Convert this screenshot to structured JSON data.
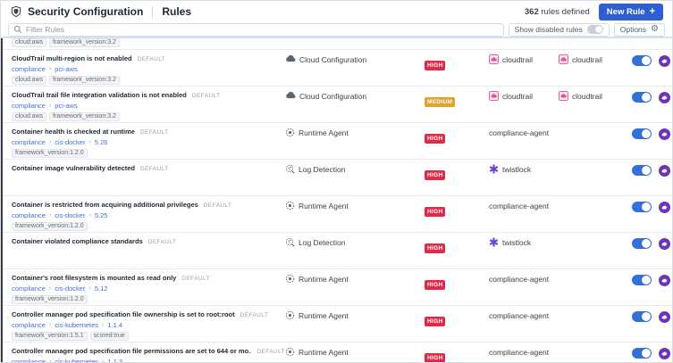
{
  "header": {
    "app_title": "Security Configuration",
    "page_title": "Rules",
    "rules_count": "362",
    "rules_count_label": " rules defined",
    "new_rule": {
      "label": "New Rule",
      "icon": "plus-icon"
    }
  },
  "filter_bar": {
    "search_placeholder": "Filter Rules",
    "search_value": "",
    "show_disabled_label": "Show disabled rules",
    "show_disabled_enabled": false,
    "options_label": "Options",
    "options_icon": "gear-icon"
  },
  "colors": {
    "accent_blue": "#2d5fd3",
    "toggle_on": "#3370d8",
    "link_blue": "#3e6fd9",
    "severity": {
      "HIGH": "#de2b47",
      "MEDIUM": "#dfa32e"
    },
    "cloudtrail_pink": "#ec4d92",
    "twistlock_purple": "#6b46c8",
    "avatar_purple": "#6c35b5"
  },
  "partial_row": {
    "tags": [
      "cloud:aws",
      "framework_version:3.2"
    ]
  },
  "rows": [
    {
      "title": "CloudTrail multi-region is not enabled",
      "badge": "DEFAULT",
      "breadcrumb": [
        "compliance",
        "pci-aws"
      ],
      "tags": [
        "cloud:aws",
        "framework_version:3.2"
      ],
      "type": {
        "icon": "cloud-icon",
        "label": "Cloud Configuration"
      },
      "severity": "HIGH",
      "sources": [
        {
          "icon": "cloudtrail-icon",
          "label": "cloudtrail"
        },
        {
          "icon": "cloudtrail-icon",
          "label": "cloudtrail"
        }
      ],
      "enabled": true
    },
    {
      "title": "CloudTrail trail file integration validation is not enabled",
      "badge": "DEFAULT",
      "breadcrumb": [
        "compliance",
        "pci-aws"
      ],
      "tags": [
        "cloud:aws",
        "framework_version:3.2"
      ],
      "type": {
        "icon": "cloud-icon",
        "label": "Cloud Configuration"
      },
      "severity": "MEDIUM",
      "sources": [
        {
          "icon": "cloudtrail-icon",
          "label": "cloudtrail"
        },
        {
          "icon": "cloudtrail-icon",
          "label": "cloudtrail"
        }
      ],
      "enabled": true
    },
    {
      "title": "Container health is checked at runtime",
      "badge": "DEFAULT",
      "breadcrumb": [
        "compliance",
        "cis-docker",
        "5.26"
      ],
      "tags": [
        "framework_version:1.2.0"
      ],
      "type": {
        "icon": "runtime-agent-icon",
        "label": "Runtime Agent"
      },
      "severity": "HIGH",
      "sources": [
        {
          "icon": null,
          "label": "compliance-agent"
        }
      ],
      "enabled": true
    },
    {
      "title": "Container image vulnerability detected",
      "badge": "DEFAULT",
      "breadcrumb": [],
      "tags": [],
      "type": {
        "icon": "log-detection-icon",
        "label": "Log Detection"
      },
      "severity": "HIGH",
      "sources": [
        {
          "icon": "twistlock-icon",
          "label": "twistlock"
        }
      ],
      "enabled": true
    },
    {
      "title": "Container is restricted from acquiring additional privileges",
      "badge": "DEFAULT",
      "breadcrumb": [
        "compliance",
        "cis-docker",
        "5.25"
      ],
      "tags": [
        "framework_version:1.2.0"
      ],
      "type": {
        "icon": "runtime-agent-icon",
        "label": "Runtime Agent"
      },
      "severity": "HIGH",
      "sources": [
        {
          "icon": null,
          "label": "compliance-agent"
        }
      ],
      "enabled": true
    },
    {
      "title": "Container violated compliance standards",
      "badge": "DEFAULT",
      "breadcrumb": [],
      "tags": [],
      "type": {
        "icon": "log-detection-icon",
        "label": "Log Detection"
      },
      "severity": "HIGH",
      "sources": [
        {
          "icon": "twistlock-icon",
          "label": "twistlock"
        }
      ],
      "enabled": true
    },
    {
      "title": "Container's root filesystem is mounted as read only",
      "badge": "DEFAULT",
      "breadcrumb": [
        "compliance",
        "cis-docker",
        "5.12"
      ],
      "tags": [
        "framework_version:1.2.0"
      ],
      "type": {
        "icon": "runtime-agent-icon",
        "label": "Runtime Agent"
      },
      "severity": "HIGH",
      "sources": [
        {
          "icon": null,
          "label": "compliance-agent"
        }
      ],
      "enabled": true
    },
    {
      "title": "Controller manager pod specification file ownership is set to root:root",
      "badge": "DEFAULT",
      "breadcrumb": [
        "compliance",
        "cis-kubernetes",
        "1.1.4"
      ],
      "tags": [
        "framework_version:1.5.1",
        "scored:true"
      ],
      "type": {
        "icon": "runtime-agent-icon",
        "label": "Runtime Agent"
      },
      "severity": "HIGH",
      "sources": [
        {
          "icon": null,
          "label": "compliance-agent"
        }
      ],
      "enabled": true
    },
    {
      "title": "Controller manager pod specification file permissions are set to 644 or mo...",
      "badge": "DEFAULT",
      "breadcrumb": [
        "compliance",
        "cis-kubernetes",
        "1.1.3"
      ],
      "tags": [],
      "type": {
        "icon": "runtime-agent-icon",
        "label": "Runtime Agent"
      },
      "severity": "HIGH",
      "sources": [
        {
          "icon": null,
          "label": "compliance-agent"
        }
      ],
      "enabled": true
    }
  ]
}
